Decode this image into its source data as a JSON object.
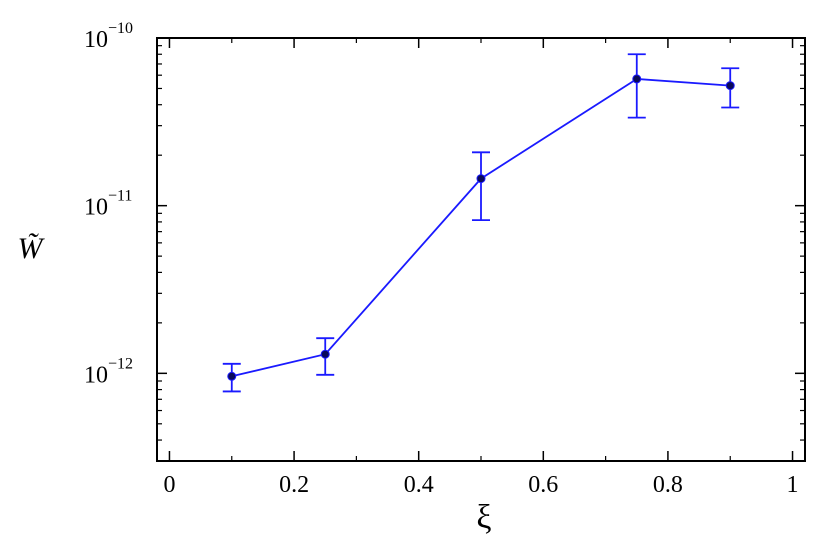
{
  "chart_data": {
    "type": "line",
    "title": "",
    "xlabel": "ξ",
    "ylabel": "W̃",
    "xlim": [
      -0.02,
      1.02
    ],
    "ylim": [
      3e-13,
      1e-10
    ],
    "yscale": "log",
    "grid": false,
    "x_ticks": [
      0,
      0.2,
      0.4,
      0.6,
      0.8,
      1
    ],
    "x_tick_labels": [
      "0",
      "0.2",
      "0.4",
      "0.6",
      "0.8",
      "1"
    ],
    "y_ticks": [
      1e-12,
      1e-11,
      1e-10
    ],
    "y_tick_labels": [
      {
        "base": "10",
        "exp": "−12"
      },
      {
        "base": "10",
        "exp": "−11"
      },
      {
        "base": "10",
        "exp": "−10"
      }
    ],
    "series": [
      {
        "color": "#1a1aff",
        "marker_color": "#0a0a5a",
        "points": [
          {
            "x": 0.1,
            "y": 9.6e-13,
            "y_low": 7.8e-13,
            "y_high": 1.14e-12
          },
          {
            "x": 0.25,
            "y": 1.3e-12,
            "y_low": 9.8e-13,
            "y_high": 1.62e-12
          },
          {
            "x": 0.5,
            "y": 1.45e-11,
            "y_low": 8.2e-12,
            "y_high": 2.08e-11
          },
          {
            "x": 0.75,
            "y": 5.7e-11,
            "y_low": 3.35e-11,
            "y_high": 8e-11
          },
          {
            "x": 0.9,
            "y": 5.2e-11,
            "y_low": 3.85e-11,
            "y_high": 6.6e-11
          }
        ]
      }
    ]
  }
}
